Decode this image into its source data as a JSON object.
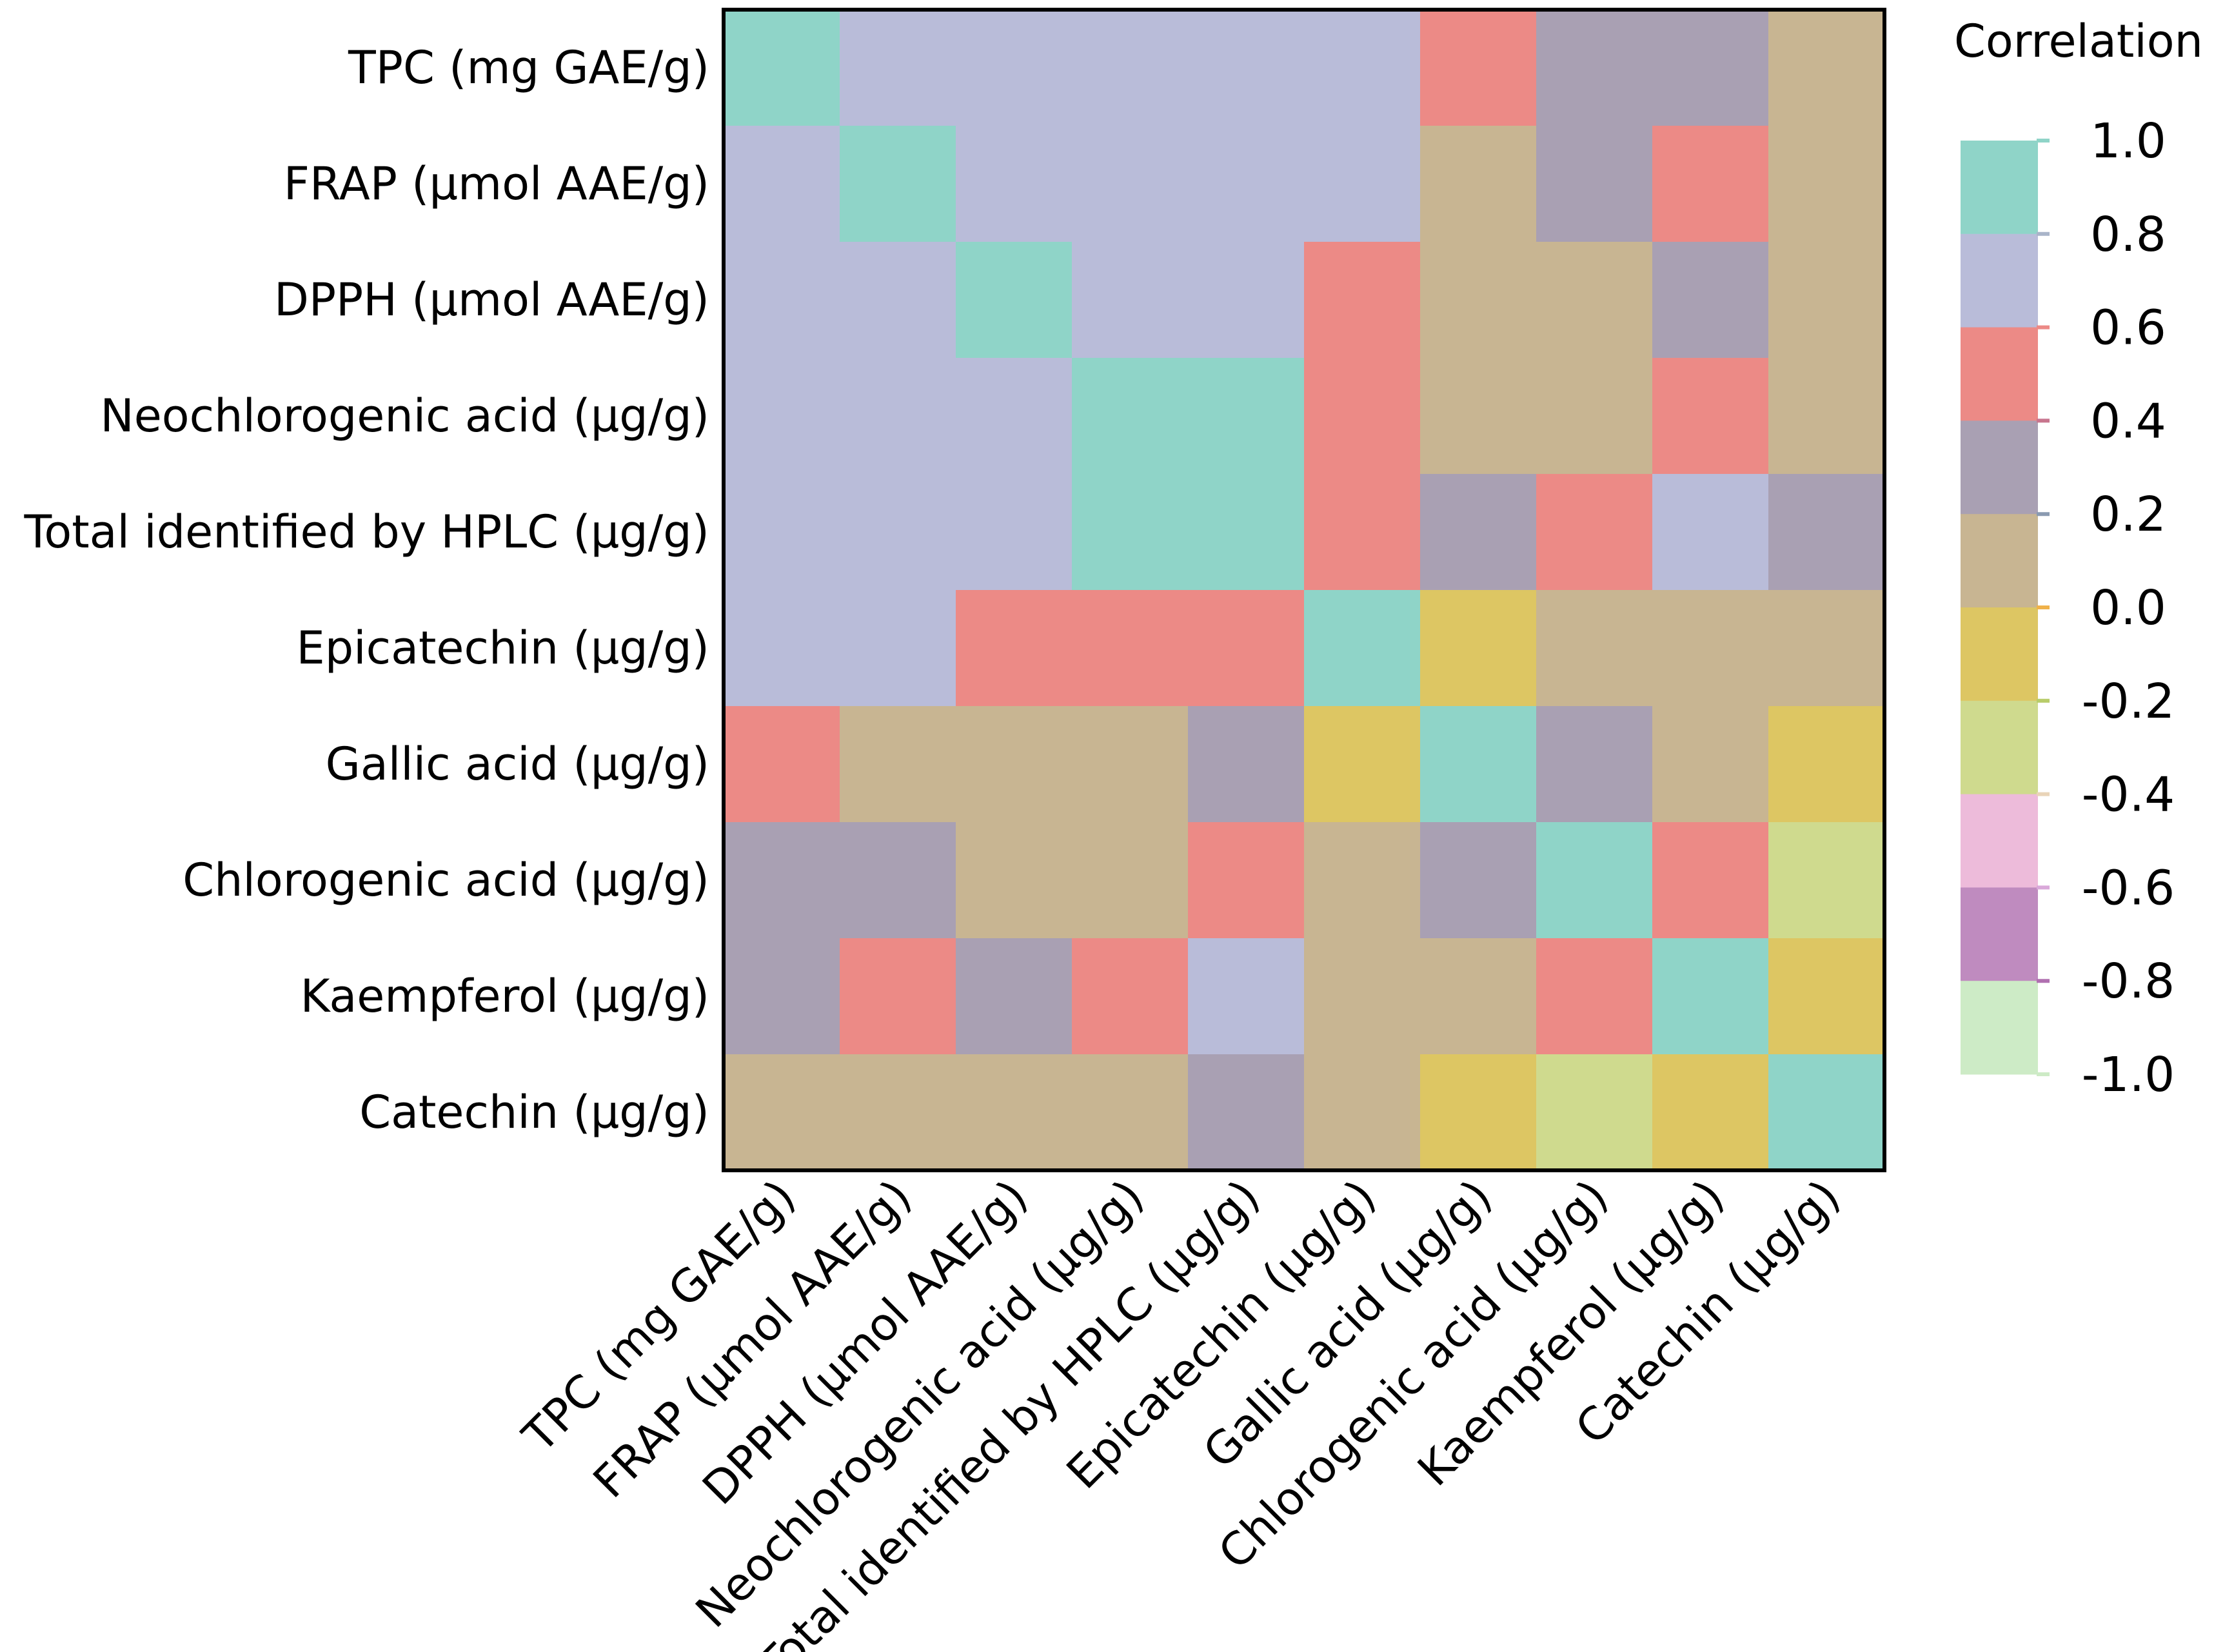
{
  "chart_data": {
    "type": "heatmap",
    "title": "",
    "legend_title": "Correlation",
    "legend_ticks": [
      "1.0",
      "0.8",
      "0.6",
      "0.4",
      "0.2",
      "0.0",
      "-0.2",
      "-0.4",
      "-0.6",
      "-0.8",
      "-1.0"
    ],
    "legend_range": [
      -1.0,
      1.0
    ],
    "bins": [
      {
        "range": [
          0.8,
          1.0
        ],
        "color": "#8FD4C8"
      },
      {
        "range": [
          0.6,
          0.8
        ],
        "color": "#B9BCD9"
      },
      {
        "range": [
          0.4,
          0.6
        ],
        "color": "#EC8A86"
      },
      {
        "range": [
          0.2,
          0.4
        ],
        "color": "#A9A0B3"
      },
      {
        "range": [
          0.0,
          0.2
        ],
        "color": "#C8B592"
      },
      {
        "range": [
          -0.2,
          0.0
        ],
        "color": "#DDC663"
      },
      {
        "range": [
          -0.4,
          -0.2
        ],
        "color": "#CFDA8E"
      },
      {
        "range": [
          -0.6,
          -0.4
        ],
        "color": "#EDBBDA"
      },
      {
        "range": [
          -0.8,
          -0.6
        ],
        "color": "#BF8BBF"
      },
      {
        "range": [
          -1.0,
          -0.8
        ],
        "color": "#CDEBC6"
      }
    ],
    "tick_mark_colors": [
      "#8FD4C8",
      "#A9B4C9",
      "#EC8A86",
      "#C8758E",
      "#8A9AB0",
      "#F0B24A",
      "#B8CC6A",
      "#E9D4B8",
      "#D9A8D9",
      "#B070B0",
      "#CDEBC6"
    ],
    "rows": [
      "TPC (mg GAE/g)",
      "FRAP (μmol AAE/g)",
      "DPPH (μmol AAE/g)",
      "Neochlorogenic acid (μg/g)",
      "Total identified by HPLC (μg/g)",
      "Epicatechin (μg/g)",
      "Gallic acid (μg/g)",
      "Chlorogenic acid (μg/g)",
      "Kaempferol (μg/g)",
      "Catechin (μg/g)"
    ],
    "columns": [
      "TPC (mg GAE/g)",
      "FRAP (μmol AAE/g)",
      "DPPH (μmol AAE/g)",
      "Neochlorogenic acid (μg/g)",
      "Total identified by HPLC (μg/g)",
      "Epicatechin (μg/g)",
      "Gallic acid (μg/g)",
      "Chlorogenic acid (μg/g)",
      "Kaempferol (μg/g)",
      "Catechin (μg/g)"
    ],
    "values": [
      [
        1.0,
        0.7,
        0.7,
        0.7,
        0.7,
        0.7,
        0.5,
        0.3,
        0.3,
        0.1
      ],
      [
        0.7,
        1.0,
        0.7,
        0.7,
        0.7,
        0.7,
        0.1,
        0.3,
        0.5,
        0.1
      ],
      [
        0.7,
        0.7,
        1.0,
        0.7,
        0.7,
        0.5,
        0.1,
        0.1,
        0.3,
        0.1
      ],
      [
        0.7,
        0.7,
        0.7,
        0.9,
        0.9,
        0.5,
        0.1,
        0.1,
        0.5,
        0.1
      ],
      [
        0.7,
        0.7,
        0.7,
        0.9,
        0.9,
        0.5,
        0.3,
        0.5,
        0.7,
        0.3
      ],
      [
        0.7,
        0.7,
        0.5,
        0.5,
        0.5,
        1.0,
        -0.1,
        0.1,
        0.1,
        0.1
      ],
      [
        0.5,
        0.1,
        0.1,
        0.1,
        0.3,
        -0.1,
        1.0,
        0.3,
        0.1,
        -0.1
      ],
      [
        0.3,
        0.3,
        0.1,
        0.1,
        0.5,
        0.1,
        0.3,
        1.0,
        0.5,
        -0.3
      ],
      [
        0.3,
        0.5,
        0.3,
        0.5,
        0.7,
        0.1,
        0.1,
        0.5,
        1.0,
        -0.1
      ],
      [
        0.1,
        0.1,
        0.1,
        0.1,
        0.3,
        0.1,
        -0.1,
        -0.3,
        -0.1,
        1.0
      ]
    ]
  }
}
